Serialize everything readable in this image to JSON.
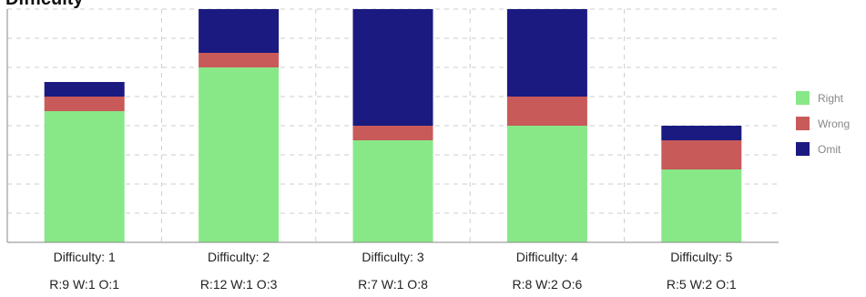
{
  "chart_data": {
    "type": "bar",
    "stacked": true,
    "title": "Difficulty",
    "categories": [
      "Difficulty: 1",
      "Difficulty: 2",
      "Difficulty: 3",
      "Difficulty: 4",
      "Difficulty: 5"
    ],
    "subcategories": [
      "R:9 W:1 O:1",
      "R:12 W:1 O:3",
      "R:7 W:1 O:8",
      "R:8 W:2 O:6",
      "R:5 W:2 O:1"
    ],
    "series": [
      {
        "name": "Right",
        "color": "#88e888",
        "values": [
          9,
          12,
          7,
          8,
          5
        ]
      },
      {
        "name": "Wrong",
        "color": "#c85a5a",
        "values": [
          1,
          1,
          1,
          2,
          2
        ]
      },
      {
        "name": "Omit",
        "color": "#1a1a80",
        "values": [
          1,
          3,
          8,
          6,
          1
        ]
      }
    ],
    "ylim": [
      0,
      16
    ],
    "grid": true,
    "legend": "right"
  }
}
